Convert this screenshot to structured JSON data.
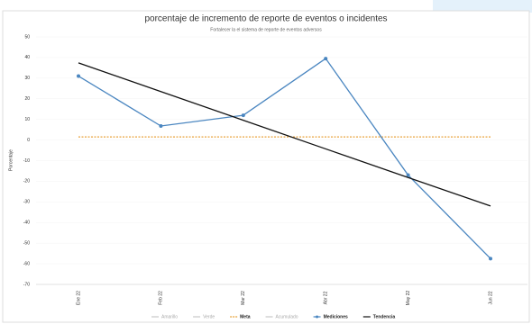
{
  "chart_data": {
    "type": "line",
    "title": "porcentaje de incremento de reporte de eventos o incidentes",
    "subtitle": "Fortalecer la el sistema de reporte de eventos adversos",
    "y_label": "Porcentaje",
    "categories": [
      "Ene 22",
      "Feb 22",
      "Mar 22",
      "Abr 22",
      "May 22",
      "Jun 22"
    ],
    "ylim": [
      -70,
      50
    ],
    "yticks": [
      50,
      40,
      30,
      20,
      10,
      0,
      -10,
      -20,
      -30,
      -40,
      -50,
      -60,
      -70
    ],
    "series": [
      {
        "name": "Amarillo",
        "color": "#c8c8c8",
        "values": [
          null,
          null,
          null,
          null,
          null,
          null
        ]
      },
      {
        "name": "Verde",
        "color": "#c8c8c8",
        "values": [
          null,
          null,
          null,
          null,
          null,
          null
        ]
      },
      {
        "name": "Meta",
        "color": "#e8a33c",
        "dashed": true,
        "values": [
          1.5,
          1.5,
          1.5,
          1.5,
          1.5,
          1.5
        ]
      },
      {
        "name": "Acumulado",
        "color": "#c8c8c8",
        "values": [
          null,
          null,
          null,
          null,
          null,
          null
        ]
      },
      {
        "name": "Mediciones",
        "color": "#4a86c0",
        "markers": true,
        "values": [
          31,
          6.8,
          12,
          39.5,
          -17,
          -57.5
        ]
      },
      {
        "name": "Tendencia",
        "color": "#111111",
        "values": [
          37.4,
          23.5,
          9.6,
          -4.3,
          -18.2,
          -32
        ]
      }
    ]
  }
}
